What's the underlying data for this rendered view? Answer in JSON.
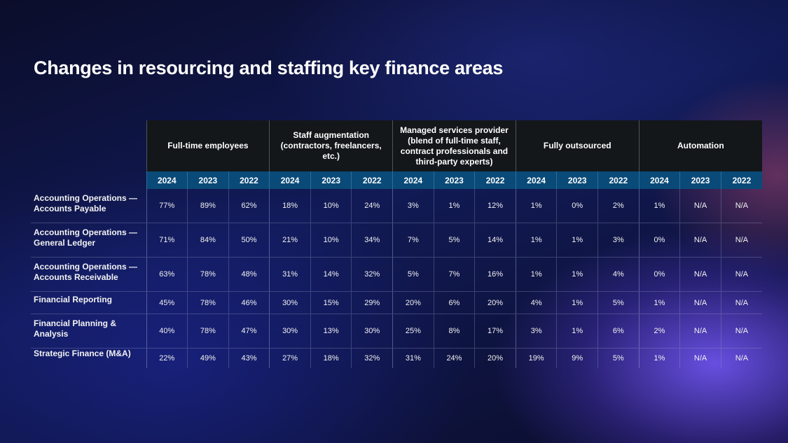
{
  "title": "Changes in resourcing and staffing key finance areas",
  "colors": {
    "header_dark": "#131719",
    "header_year": "#0a4a78",
    "background": "#0a0c24"
  },
  "chart_data": {
    "type": "table",
    "title": "Changes in resourcing and staffing key finance areas",
    "groups": [
      "Full-time employees",
      "Staff augmentation (contractors, freelancers, etc.)",
      "Managed services provider (blend of full-time staff, contract professionals and third-party experts)",
      "Fully outsourced",
      "Automation"
    ],
    "years": [
      "2024",
      "2023",
      "2022"
    ],
    "rows": [
      {
        "label": "Accounting Operations — Accounts Payable",
        "values": [
          "77%",
          "89%",
          "62%",
          "18%",
          "10%",
          "24%",
          "3%",
          "1%",
          "12%",
          "1%",
          "0%",
          "2%",
          "1%",
          "N/A",
          "N/A"
        ]
      },
      {
        "label": "Accounting Operations — General Ledger",
        "values": [
          "71%",
          "84%",
          "50%",
          "21%",
          "10%",
          "34%",
          "7%",
          "5%",
          "14%",
          "1%",
          "1%",
          "3%",
          "0%",
          "N/A",
          "N/A"
        ]
      },
      {
        "label": "Accounting Operations — Accounts Receivable",
        "values": [
          "63%",
          "78%",
          "48%",
          "31%",
          "14%",
          "32%",
          "5%",
          "7%",
          "16%",
          "1%",
          "1%",
          "4%",
          "0%",
          "N/A",
          "N/A"
        ]
      },
      {
        "label": "Financial Reporting",
        "values": [
          "45%",
          "78%",
          "46%",
          "30%",
          "15%",
          "29%",
          "20%",
          "6%",
          "20%",
          "4%",
          "1%",
          "5%",
          "1%",
          "N/A",
          "N/A"
        ]
      },
      {
        "label": "Financial Planning & Analysis",
        "values": [
          "40%",
          "78%",
          "47%",
          "30%",
          "13%",
          "30%",
          "25%",
          "8%",
          "17%",
          "3%",
          "1%",
          "6%",
          "2%",
          "N/A",
          "N/A"
        ]
      },
      {
        "label": "Strategic Finance (M&A)",
        "values": [
          "22%",
          "49%",
          "43%",
          "27%",
          "18%",
          "32%",
          "31%",
          "24%",
          "20%",
          "19%",
          "9%",
          "5%",
          "1%",
          "N/A",
          "N/A"
        ]
      }
    ]
  }
}
